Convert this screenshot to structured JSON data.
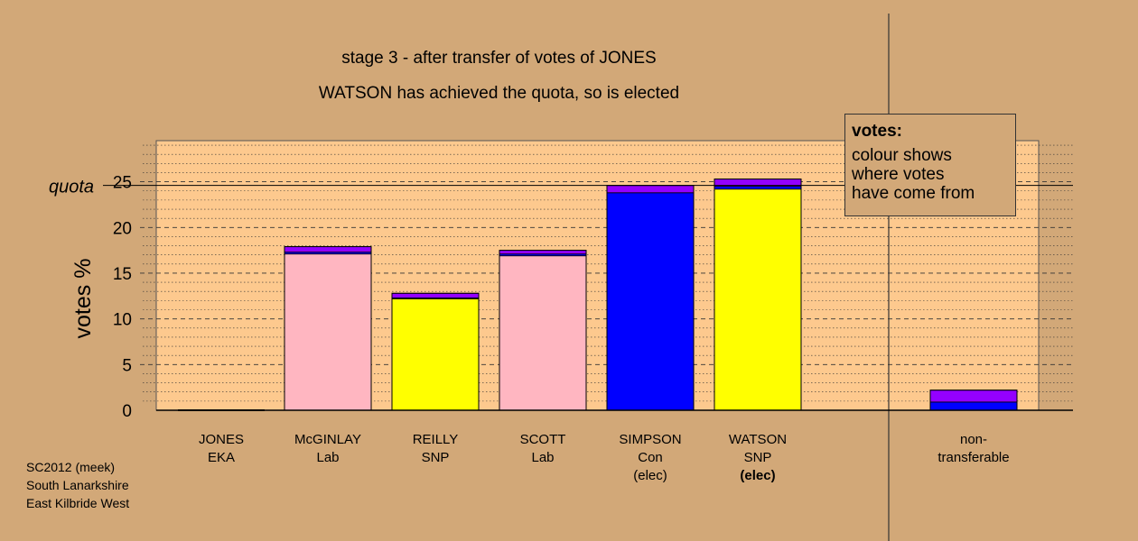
{
  "title": "stage 3 - after transfer of votes of JONES",
  "subtitle": "WATSON has achieved the quota, so is elected",
  "legend": {
    "title": "votes:",
    "lines": [
      "colour shows",
      "where votes",
      "have come from"
    ]
  },
  "footer": [
    "SC2012 (meek)",
    "South Lanarkshire",
    "East Kilbride West"
  ],
  "colors": {
    "background": "#d2a878",
    "plot_background": "#fdc98e",
    "Lab": "#ffb6c1",
    "SNP": "#ffff00",
    "Con": "#0000ff",
    "EKA": "#9400ff"
  },
  "chart_data": {
    "type": "bar",
    "stacked": true,
    "ylabel": "votes %",
    "ylim": [
      0,
      29.5
    ],
    "yticks": [
      0,
      5,
      10,
      15,
      20,
      25
    ],
    "quota": 24.6,
    "quota_label": "quota",
    "grid": true,
    "categories": [
      {
        "name": "JONES",
        "party": "EKA",
        "status": ""
      },
      {
        "name": "McGINLAY",
        "party": "Lab",
        "status": ""
      },
      {
        "name": "REILLY",
        "party": "SNP",
        "status": ""
      },
      {
        "name": "SCOTT",
        "party": "Lab",
        "status": ""
      },
      {
        "name": "SIMPSON",
        "party": "Con",
        "status": "(elec)"
      },
      {
        "name": "WATSON",
        "party": "SNP",
        "status": "(elec)"
      },
      {
        "name": "non-",
        "party": "transferable",
        "status": ""
      }
    ],
    "stacks": [
      [],
      [
        {
          "from": "Lab",
          "value": 17.1
        },
        {
          "from": "Con",
          "value": 0.2
        },
        {
          "from": "EKA",
          "value": 0.6
        }
      ],
      [
        {
          "from": "SNP",
          "value": 12.2
        },
        {
          "from": "Con",
          "value": 0.1
        },
        {
          "from": "EKA",
          "value": 0.5
        }
      ],
      [
        {
          "from": "Lab",
          "value": 16.9
        },
        {
          "from": "Con",
          "value": 0.2
        },
        {
          "from": "EKA",
          "value": 0.4
        }
      ],
      [
        {
          "from": "Con",
          "value": 23.8
        },
        {
          "from": "EKA",
          "value": 0.8
        }
      ],
      [
        {
          "from": "SNP",
          "value": 24.2
        },
        {
          "from": "Con",
          "value": 0.3
        },
        {
          "from": "EKA",
          "value": 0.8
        }
      ],
      [
        {
          "from": "Con",
          "value": 0.9
        },
        {
          "from": "EKA",
          "value": 1.3
        }
      ]
    ]
  }
}
